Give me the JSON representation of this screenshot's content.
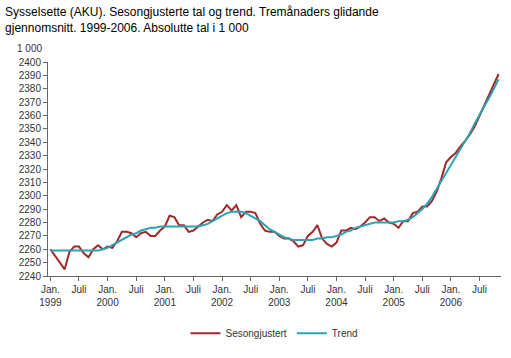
{
  "chart_data": {
    "type": "line",
    "title": "Sysselsette (AKU). Sesongjusterte tal og trend. Tremånaders glidande\ngjennomsnitt. 1999-2006. Absolutte tal i 1 000",
    "annotations": [
      "1 000"
    ],
    "categories": [
      "Jan.\n1999",
      null,
      null,
      null,
      null,
      null,
      "Juli",
      null,
      null,
      null,
      null,
      null,
      "Jan.\n2000",
      null,
      null,
      null,
      null,
      null,
      "Juli",
      null,
      null,
      null,
      null,
      null,
      "Jan.\n2001",
      null,
      null,
      null,
      null,
      null,
      "Juli",
      null,
      null,
      null,
      null,
      null,
      "Jan.\n2002",
      null,
      null,
      null,
      null,
      null,
      "Juli",
      null,
      null,
      null,
      null,
      null,
      "Jan.\n2003",
      null,
      null,
      null,
      null,
      null,
      "Juli",
      null,
      null,
      null,
      null,
      null,
      "Jan.\n2004",
      null,
      null,
      null,
      null,
      null,
      "Juli",
      null,
      null,
      null,
      null,
      null,
      "Jan.\n2005",
      null,
      null,
      null,
      null,
      null,
      "Juli",
      null,
      null,
      null,
      null,
      null,
      "Jan.\n2006",
      null,
      null,
      null,
      null,
      null,
      "Juli",
      null,
      null,
      null,
      null
    ],
    "series": [
      {
        "name": "Sesongjustert",
        "color": "#9e2a2b",
        "values": [
          2260,
          2255,
          2250,
          2245,
          2258,
          2262,
          2262,
          2257,
          2254,
          2260,
          2263,
          2260,
          2262,
          2261,
          2266,
          2273,
          2273,
          2272,
          2269,
          2272,
          2273,
          2270,
          2270,
          2274,
          2277,
          2285,
          2284,
          2278,
          2278,
          2273,
          2274,
          2277,
          2280,
          2282,
          2281,
          2286,
          2288,
          2293,
          2289,
          2293,
          2284,
          2288,
          2288,
          2287,
          2279,
          2274,
          2273,
          2273,
          2270,
          2268,
          2268,
          2266,
          2262,
          2263,
          2270,
          2273,
          2278,
          2268,
          2264,
          2262,
          2265,
          2274,
          2274,
          2276,
          2275,
          2277,
          2280,
          2284,
          2284,
          2281,
          2283,
          2280,
          2279,
          2276,
          2281,
          2281,
          2287,
          2288,
          2292,
          2292,
          2296,
          2303,
          2313,
          2325,
          2329,
          2332,
          2337,
          2341,
          2346,
          2352,
          2360,
          2368,
          2375,
          2383,
          2391
        ]
      },
      {
        "name": "Trend",
        "color": "#2aa3b3",
        "values": [
          2259,
          2259,
          2259,
          2259,
          2259,
          2259,
          2259,
          2259,
          2259,
          2259,
          2259,
          2260,
          2261,
          2263,
          2265,
          2267,
          2269,
          2271,
          2272,
          2274,
          2275,
          2276,
          2276,
          2277,
          2277,
          2277,
          2277,
          2277,
          2277,
          2277,
          2277,
          2277,
          2278,
          2279,
          2281,
          2283,
          2285,
          2287,
          2288,
          2288,
          2288,
          2287,
          2285,
          2283,
          2281,
          2278,
          2275,
          2273,
          2271,
          2269,
          2268,
          2267,
          2267,
          2267,
          2267,
          2267,
          2268,
          2268,
          2269,
          2269,
          2270,
          2271,
          2273,
          2274,
          2276,
          2277,
          2278,
          2279,
          2280,
          2280,
          2280,
          2280,
          2280,
          2281,
          2281,
          2282,
          2284,
          2287,
          2290,
          2294,
          2299,
          2305,
          2311,
          2317,
          2322,
          2328,
          2334,
          2340,
          2347,
          2354,
          2361,
          2367,
          2373,
          2380,
          2387
        ]
      }
    ],
    "ylim": [
      2240,
      2400
    ],
    "yticks": [
      2240,
      2250,
      2260,
      2270,
      2280,
      2290,
      2300,
      2310,
      2320,
      2330,
      2340,
      2350,
      2360,
      2370,
      2380,
      2390,
      2400
    ],
    "grid": false,
    "legend": "bottom"
  }
}
